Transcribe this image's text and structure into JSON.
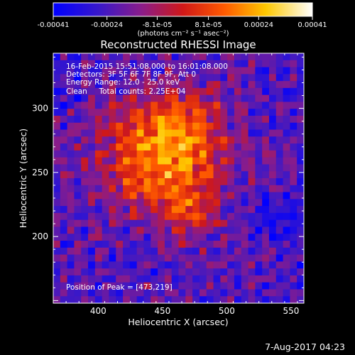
{
  "app": {
    "date_stamp": "7-Aug-2017 04:23"
  },
  "colorbar": {
    "tick_labels": [
      "-0.00041",
      "-0.00024",
      "-8.1e-05",
      "8.1e-05",
      "0.00024",
      "0.00041"
    ],
    "tick_values": [
      -0.00041,
      -0.00024,
      -8.1e-05,
      8.1e-05,
      0.00024,
      0.00041
    ],
    "range": [
      -0.00041,
      0.00041
    ],
    "unit_label": "(photons cm⁻² s⁻¹ asec⁻²)"
  },
  "chart_data": {
    "type": "heatmap",
    "title": "Reconstructed RHESSI Image",
    "xlabel": "Heliocentric X (arcsec)",
    "ylabel": "Heliocentric Y (arcsec)",
    "xlim": [
      365,
      560
    ],
    "ylim": [
      148,
      343
    ],
    "x_ticks": [
      400,
      450,
      500,
      550
    ],
    "y_ticks": [
      200,
      250,
      300
    ],
    "x_tick_labels": [
      "400",
      "450",
      "500",
      "550"
    ],
    "y_tick_labels": [
      "200",
      "250",
      "300"
    ],
    "annotations": [
      "16-Feb-2015 15:51:08.000 to 16:01:08.000",
      "Detectors: 3F 5F 6F 7F 8F 9F, Att 0",
      "Energy Range: 12.0 - 25.0 keV",
      "Clean     Total counts: 2.25E+04"
    ],
    "peak_label": "Position of Peak = [473,219]",
    "peak_position": [
      473,
      219
    ],
    "colormap": "blue-purple-red-orange-yellow-white"
  }
}
